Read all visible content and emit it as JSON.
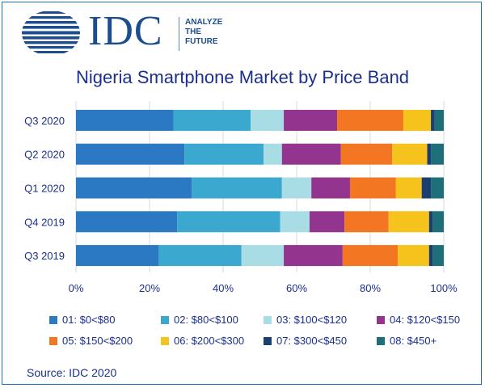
{
  "logo": {
    "brand": "IDC",
    "tagline": [
      "ANALYZE",
      "THE",
      "FUTURE"
    ]
  },
  "chart_data": {
    "type": "bar",
    "orientation": "horizontal",
    "stacked": true,
    "percent": true,
    "title": "Nigeria Smartphone Market by Price Band",
    "categories": [
      "Q3 2020",
      "Q2 2020",
      "Q1 2020",
      "Q4 2019",
      "Q3 2019"
    ],
    "xlim": [
      0,
      100
    ],
    "xticks": [
      "0%",
      "20%",
      "40%",
      "60%",
      "80%",
      "100%"
    ],
    "grid": true,
    "legend_position": "bottom",
    "series": [
      {
        "name": "01: $0<$80",
        "color": "#2b79c2",
        "values": [
          26.5,
          29.5,
          31.5,
          27.5,
          22.5
        ]
      },
      {
        "name": "02: $80<$100",
        "color": "#3aa8cf",
        "values": [
          21.0,
          21.5,
          24.5,
          28.0,
          22.5
        ]
      },
      {
        "name": "03: $100<$120",
        "color": "#a9dde6",
        "values": [
          9.0,
          5.0,
          8.0,
          8.0,
          11.5
        ]
      },
      {
        "name": "04: $120<$150",
        "color": "#93348e",
        "values": [
          14.5,
          16.0,
          10.5,
          9.5,
          16.0
        ]
      },
      {
        "name": "05: $150<$200",
        "color": "#f37722",
        "values": [
          18.0,
          14.0,
          12.5,
          12.0,
          15.0
        ]
      },
      {
        "name": "06: $200<$300",
        "color": "#f5c31c",
        "values": [
          7.5,
          9.5,
          7.0,
          11.0,
          8.5
        ]
      },
      {
        "name": "07: $300<$450",
        "color": "#1b3f6e",
        "values": [
          1.0,
          1.0,
          2.5,
          1.0,
          1.0
        ]
      },
      {
        "name": "08: $450+",
        "color": "#1f6f7a",
        "values": [
          2.5,
          3.5,
          3.5,
          3.0,
          3.0
        ]
      }
    ]
  },
  "source": "Source: IDC 2020"
}
